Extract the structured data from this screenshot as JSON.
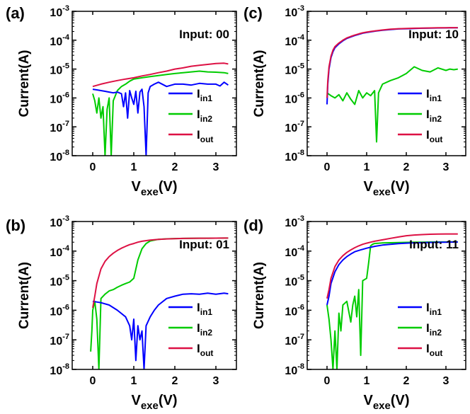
{
  "chart_data": [
    {
      "panel_label": "(a)",
      "type": "line",
      "annotation": "Input: 00",
      "xlabel": {
        "main": "V",
        "sub": "exe",
        "tail": "(V)"
      },
      "ylabel": "Current(A)",
      "xlim": [
        -0.5,
        3.5
      ],
      "ylim": [
        1e-08,
        0.001
      ],
      "y_scale": "log",
      "xticks": [
        "0",
        "1",
        "2",
        "3"
      ],
      "yticks": [
        {
          "base": "10",
          "exp": "-8"
        },
        {
          "base": "10",
          "exp": "-7"
        },
        {
          "base": "10",
          "exp": "-6"
        },
        {
          "base": "10",
          "exp": "-5"
        },
        {
          "base": "10",
          "exp": "-4"
        },
        {
          "base": "10",
          "exp": "-3"
        }
      ],
      "legend": [
        {
          "main": "I",
          "sub": "in1",
          "color": "#0000ff"
        },
        {
          "main": "I",
          "sub": "in2",
          "color": "#00cc00"
        },
        {
          "main": "I",
          "sub": "out",
          "color": "#dd1144"
        }
      ],
      "series": [
        {
          "color": "#0000ff",
          "x": [
            0,
            0.1,
            0.2,
            0.3,
            0.4,
            0.5,
            0.6,
            0.7,
            0.75,
            0.8,
            0.85,
            0.9,
            0.95,
            1.0,
            1.05,
            1.1,
            1.15,
            1.2,
            1.25,
            1.3,
            1.35,
            1.4,
            1.5,
            1.6,
            1.8,
            2.0,
            2.2,
            2.4,
            2.6,
            2.8,
            3.0,
            3.1,
            3.2,
            3.3
          ],
          "y": [
            2e-06,
            1.9e-06,
            1.8e-06,
            1.7e-06,
            1.6e-06,
            1.5e-06,
            1.6e-06,
            1.4e-06,
            5e-07,
            1.5e-06,
            2e-07,
            1.8e-06,
            1e-06,
            6e-07,
            1.7e-06,
            3e-07,
            1.6e-06,
            2e-06,
            5e-07,
            1e-08,
            1.5e-06,
            2.5e-06,
            3e-06,
            3.5e-06,
            2.5e-06,
            3e-06,
            3e-06,
            2.8e-06,
            3.2e-06,
            3e-06,
            3e-06,
            2.6e-06,
            3.5e-06,
            2.8e-06
          ]
        },
        {
          "color": "#00cc00",
          "x": [
            0,
            0.05,
            0.1,
            0.15,
            0.2,
            0.25,
            0.3,
            0.35,
            0.4,
            0.45,
            0.5,
            0.55,
            0.6,
            0.7,
            0.8,
            0.9,
            1.0,
            1.2,
            1.4,
            1.6,
            1.8,
            2.0,
            2.2,
            2.4,
            2.6,
            2.8,
            3.0,
            3.2,
            3.3
          ],
          "y": [
            1.4e-06,
            8e-07,
            3e-07,
            1e-06,
            2e-07,
            5e-07,
            1e-08,
            4e-07,
            1e-06,
            1e-08,
            8e-07,
            1.2e-06,
            1.8e-06,
            2.5e-06,
            3e-06,
            3.8e-06,
            4.5e-06,
            5e-06,
            5.5e-06,
            6e-06,
            6.5e-06,
            7e-06,
            7.5e-06,
            8e-06,
            8.5e-06,
            8e-06,
            7.8e-06,
            7.5e-06,
            7e-06
          ]
        },
        {
          "color": "#dd1144",
          "x": [
            0,
            0.2,
            0.4,
            0.6,
            0.8,
            1.0,
            1.2,
            1.4,
            1.6,
            1.8,
            2.0,
            2.2,
            2.4,
            2.6,
            2.8,
            3.0,
            3.2,
            3.3
          ],
          "y": [
            2.5e-06,
            3e-06,
            3.5e-06,
            4e-06,
            4.5e-06,
            5e-06,
            5.8e-06,
            6.5e-06,
            7.5e-06,
            8.5e-06,
            1e-05,
            1.1e-05,
            1.25e-05,
            1.35e-05,
            1.45e-05,
            1.55e-05,
            1.6e-05,
            1.5e-05
          ]
        }
      ]
    },
    {
      "panel_label": "(c)",
      "type": "line",
      "annotation": "Input: 10",
      "xlabel": {
        "main": "V",
        "sub": "exe",
        "tail": "(V)"
      },
      "ylabel": "Current(A)",
      "xlim": [
        -0.5,
        3.5
      ],
      "ylim": [
        1e-08,
        0.001
      ],
      "y_scale": "log",
      "xticks": [
        "0",
        "1",
        "2",
        "3"
      ],
      "yticks": [
        {
          "base": "10",
          "exp": "-8"
        },
        {
          "base": "10",
          "exp": "-7"
        },
        {
          "base": "10",
          "exp": "-6"
        },
        {
          "base": "10",
          "exp": "-5"
        },
        {
          "base": "10",
          "exp": "-4"
        },
        {
          "base": "10",
          "exp": "-3"
        }
      ],
      "legend": [
        {
          "main": "I",
          "sub": "in1",
          "color": "#0000ff"
        },
        {
          "main": "I",
          "sub": "in2",
          "color": "#00cc00"
        },
        {
          "main": "I",
          "sub": "out",
          "color": "#dd1144"
        }
      ],
      "series": [
        {
          "color": "#0000ff",
          "x": [
            0,
            0.02,
            0.05,
            0.1,
            0.15,
            0.2,
            0.3,
            0.4,
            0.5,
            0.6,
            0.7,
            0.8,
            0.9,
            1.0,
            1.1,
            1.2,
            1.25,
            1.4,
            1.6,
            1.8,
            2.0,
            2.2,
            2.4,
            2.6,
            2.8,
            3.0,
            3.2,
            3.3
          ],
          "y": [
            6e-07,
            3e-06,
            1e-05,
            2.5e-05,
            4e-05,
            5.5e-05,
            7.5e-05,
            9.5e-05,
            0.000115,
            0.00013,
            0.000145,
            0.00016,
            0.000175,
            0.000185,
            0.000195,
            0.000205,
            0.00021,
            0.00022,
            0.000235,
            0.000245,
            0.00025,
            0.000255,
            0.00026,
            0.000262,
            0.000265,
            0.000267,
            0.00027,
            0.00027
          ]
        },
        {
          "color": "#00cc00",
          "x": [
            0,
            0.1,
            0.2,
            0.3,
            0.4,
            0.5,
            0.6,
            0.7,
            0.8,
            0.9,
            1.0,
            1.1,
            1.2,
            1.25,
            1.3,
            1.4,
            1.6,
            1.8,
            2.0,
            2.2,
            2.4,
            2.6,
            2.8,
            3.0,
            3.1,
            3.2,
            3.3
          ],
          "y": [
            1.5e-06,
            1.2e-06,
            1e-06,
            1.3e-06,
            8e-07,
            1.5e-06,
            9e-07,
            6e-07,
            1.8e-06,
            1e-06,
            1.5e-06,
            1.2e-06,
            1.8e-06,
            3e-08,
            1.5e-06,
            3e-06,
            4e-06,
            5e-06,
            7e-06,
            1.2e-05,
            9e-06,
            8e-06,
            1.1e-05,
            9e-06,
            1e-05,
            9.5e-06,
            1e-05
          ]
        },
        {
          "color": "#dd1144",
          "x": [
            0,
            0.02,
            0.05,
            0.1,
            0.15,
            0.2,
            0.3,
            0.4,
            0.5,
            0.6,
            0.7,
            0.8,
            0.9,
            1.0,
            1.1,
            1.2,
            1.4,
            1.6,
            1.8,
            2.0,
            2.2,
            2.4,
            2.6,
            2.8,
            3.0,
            3.2,
            3.3
          ],
          "y": [
            1e-06,
            4e-06,
            1.2e-05,
            2.8e-05,
            4.5e-05,
            6e-05,
            8e-05,
            0.0001,
            0.00012,
            0.000135,
            0.00015,
            0.000165,
            0.00018,
            0.00019,
            0.0002,
            0.00021,
            0.000225,
            0.00024,
            0.00025,
            0.000255,
            0.00026,
            0.000263,
            0.000266,
            0.000268,
            0.00027,
            0.000272,
            0.000272
          ]
        }
      ]
    },
    {
      "panel_label": "(b)",
      "type": "line",
      "annotation": "Input: 01",
      "xlabel": {
        "main": "V",
        "sub": "exe",
        "tail": "(V)"
      },
      "ylabel": "Current(A)",
      "xlim": [
        -0.5,
        3.5
      ],
      "ylim": [
        1e-08,
        0.001
      ],
      "y_scale": "log",
      "xticks": [
        "0",
        "1",
        "2",
        "3"
      ],
      "yticks": [
        {
          "base": "10",
          "exp": "-8"
        },
        {
          "base": "10",
          "exp": "-7"
        },
        {
          "base": "10",
          "exp": "-6"
        },
        {
          "base": "10",
          "exp": "-5"
        },
        {
          "base": "10",
          "exp": "-4"
        },
        {
          "base": "10",
          "exp": "-3"
        }
      ],
      "legend": [
        {
          "main": "I",
          "sub": "in1",
          "color": "#0000ff"
        },
        {
          "main": "I",
          "sub": "in2",
          "color": "#00cc00"
        },
        {
          "main": "I",
          "sub": "out",
          "color": "#dd1144"
        }
      ],
      "series": [
        {
          "color": "#0000ff",
          "x": [
            0,
            0.2,
            0.4,
            0.6,
            0.8,
            0.9,
            0.95,
            1.0,
            1.05,
            1.1,
            1.15,
            1.2,
            1.25,
            1.3,
            1.4,
            1.5,
            1.6,
            1.8,
            2.0,
            2.2,
            2.4,
            2.6,
            2.8,
            3.0,
            3.2,
            3.3
          ],
          "y": [
            2e-06,
            1.8e-06,
            1.5e-06,
            1e-06,
            6e-07,
            3e-07,
            1e-07,
            5e-07,
            2e-08,
            3e-07,
            1e-07,
            2e-07,
            1e-08,
            3e-07,
            6e-07,
            1e-06,
            1.5e-06,
            2.5e-06,
            3e-06,
            3.5e-06,
            3.6e-06,
            3.5e-06,
            3.8e-06,
            3.5e-06,
            3.8e-06,
            3.6e-06
          ]
        },
        {
          "color": "#00cc00",
          "x": [
            -0.05,
            -0.02,
            0,
            0.05,
            0.1,
            0.15,
            0.2,
            0.3,
            0.4,
            0.5,
            0.6,
            0.7,
            0.8,
            0.9,
            1.0,
            1.1,
            1.2,
            1.3,
            1.4,
            1.6,
            1.8,
            2.0,
            2.2,
            2.4,
            2.6,
            2.8,
            3.0,
            3.2,
            3.3
          ],
          "y": [
            4e-08,
            2e-07,
            1e-06,
            2e-06,
            5e-07,
            1e-08,
            2.5e-06,
            3.5e-06,
            4.5e-06,
            5e-06,
            6e-06,
            7e-06,
            8e-06,
            9e-06,
            1.2e-05,
            5e-05,
            0.00012,
            0.00018,
            0.00022,
            0.00025,
            0.00026,
            0.000265,
            0.000268,
            0.00027,
            0.000272,
            0.000272,
            0.000274,
            0.000275,
            0.000275
          ]
        },
        {
          "color": "#dd1144",
          "x": [
            0,
            0.05,
            0.1,
            0.2,
            0.3,
            0.4,
            0.5,
            0.6,
            0.7,
            0.8,
            0.9,
            1.0,
            1.1,
            1.2,
            1.4,
            1.6,
            1.8,
            2.0,
            2.2,
            2.4,
            2.6,
            2.8,
            3.0,
            3.2,
            3.3
          ],
          "y": [
            1.2e-06,
            3e-06,
            8e-06,
            2.5e-05,
            4.5e-05,
            6.5e-05,
            8.5e-05,
            0.000105,
            0.000125,
            0.000145,
            0.000165,
            0.00018,
            0.0002,
            0.000215,
            0.000235,
            0.00025,
            0.000258,
            0.000264,
            0.000268,
            0.00027,
            0.000272,
            0.000273,
            0.000274,
            0.000275,
            0.000275
          ]
        }
      ]
    },
    {
      "panel_label": "(d)",
      "type": "line",
      "annotation": "Input: 11",
      "xlabel": {
        "main": "V",
        "sub": "exe",
        "tail": "(V)"
      },
      "ylabel": "Current(A)",
      "xlim": [
        -0.5,
        3.5
      ],
      "ylim": [
        1e-08,
        0.001
      ],
      "y_scale": "log",
      "xticks": [
        "0",
        "1",
        "2",
        "3"
      ],
      "yticks": [
        {
          "base": "10",
          "exp": "-8"
        },
        {
          "base": "10",
          "exp": "-7"
        },
        {
          "base": "10",
          "exp": "-6"
        },
        {
          "base": "10",
          "exp": "-5"
        },
        {
          "base": "10",
          "exp": "-4"
        },
        {
          "base": "10",
          "exp": "-3"
        }
      ],
      "legend": [
        {
          "main": "I",
          "sub": "in1",
          "color": "#0000ff"
        },
        {
          "main": "I",
          "sub": "in2",
          "color": "#00cc00"
        },
        {
          "main": "I",
          "sub": "out",
          "color": "#dd1144"
        }
      ],
      "series": [
        {
          "color": "#0000ff",
          "x": [
            0,
            0.05,
            0.1,
            0.2,
            0.3,
            0.4,
            0.5,
            0.6,
            0.7,
            0.8,
            0.85,
            0.9,
            1.0,
            1.1,
            1.2,
            1.4,
            1.6,
            1.8,
            2.0,
            2.2,
            2.4,
            2.6,
            2.8,
            3.0,
            3.2,
            3.3
          ],
          "y": [
            1.5e-06,
            3e-06,
            8e-06,
            2e-05,
            3.5e-05,
            5e-05,
            6.5e-05,
            8e-05,
            9.5e-05,
            0.000105,
            0.00011,
            0.000115,
            0.000125,
            0.000135,
            0.000145,
            0.00016,
            0.00017,
            0.000178,
            0.000185,
            0.00019,
            0.000193,
            0.000196,
            0.000198,
            0.0002,
            0.000202,
            0.000202
          ]
        },
        {
          "color": "#00cc00",
          "x": [
            0,
            0.05,
            0.1,
            0.15,
            0.2,
            0.25,
            0.3,
            0.35,
            0.4,
            0.5,
            0.6,
            0.65,
            0.7,
            0.75,
            0.8,
            0.85,
            0.9,
            1.0,
            1.05,
            1.1,
            1.15,
            1.2,
            1.4,
            1.6,
            1.8,
            2.0,
            2.2,
            2.4,
            2.6,
            2.8,
            3.0,
            3.2,
            3.3
          ],
          "y": [
            1.5e-06,
            5e-07,
            1e-07,
            1e-08,
            2e-07,
            1e-08,
            8e-07,
            2e-07,
            1.5e-06,
            2e-06,
            4e-07,
            1.5e-06,
            3e-06,
            6e-07,
            5e-06,
            3e-08,
            1e-05,
            1.2e-05,
            4e-05,
            0.00015,
            0.00017,
            0.00018,
            0.000188,
            0.000192,
            0.000195,
            0.000197,
            0.000199,
            0.0002,
            0.000202,
            0.000203,
            0.000204,
            0.000205,
            0.000205
          ]
        },
        {
          "color": "#dd1144",
          "x": [
            0,
            0.05,
            0.1,
            0.2,
            0.3,
            0.4,
            0.5,
            0.6,
            0.7,
            0.8,
            0.9,
            1.0,
            1.1,
            1.2,
            1.4,
            1.6,
            1.8,
            2.0,
            2.2,
            2.4,
            2.6,
            2.8,
            3.0,
            3.2,
            3.3
          ],
          "y": [
            2.5e-06,
            5e-06,
            1.2e-05,
            3e-05,
            5e-05,
            7e-05,
            9e-05,
            0.00011,
            0.00013,
            0.00015,
            0.00017,
            0.000185,
            0.0002,
            0.000215,
            0.00024,
            0.00027,
            0.0003,
            0.00033,
            0.00035,
            0.00036,
            0.00037,
            0.000375,
            0.00038,
            0.00038,
            0.00038
          ]
        }
      ]
    }
  ]
}
